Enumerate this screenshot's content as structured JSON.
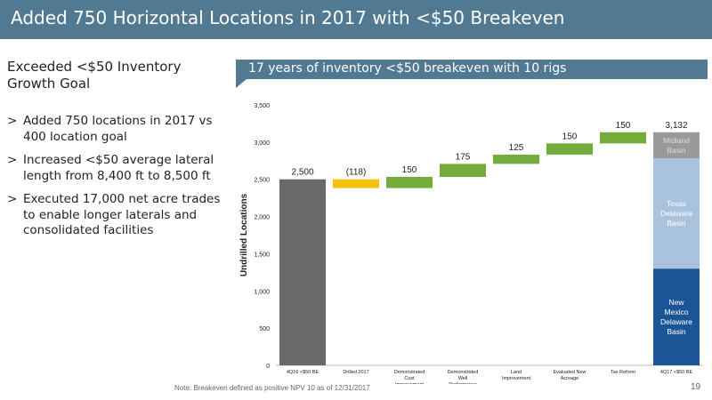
{
  "title": "Added 750 Horizontal Locations in 2017 with <$50 Breakeven",
  "left": {
    "heading": "Exceeded <$50 Inventory Growth Goal",
    "bullet_marker": ">",
    "bullets": [
      "Added 750 locations in 2017 vs 400 location goal",
      "Increased <$50 average lateral length from 8,400 ft to 8,500 ft",
      "Executed 17,000 net acre trades to enable longer laterals and consolidated facilities"
    ]
  },
  "callout": "17 years of inventory <$50 breakeven with 10 rigs",
  "chart_data": {
    "type": "waterfall",
    "ylabel": "Undrilled Locations",
    "ylim": [
      0,
      3500
    ],
    "yticks": [
      0,
      500,
      1000,
      1500,
      2000,
      2500,
      3000,
      3500
    ],
    "ytick_labels": [
      "0",
      "500",
      "1,000",
      "1,500",
      "2,000",
      "2,500",
      "3,000",
      "3,500"
    ],
    "categories": [
      "4Q16 <$50 BE",
      "Drilled 2017",
      "Demonstrated Cost Improvement",
      "Demonstrated Well Performance",
      "Land Improvement",
      "Evaluated New Acreage",
      "Tax Reform",
      "4Q17 <$50 BE"
    ],
    "steps": [
      {
        "category": "4Q16 <$50 BE",
        "kind": "total",
        "value": 2500,
        "label": "2,500",
        "color": "#696969"
      },
      {
        "category": "Drilled 2017",
        "kind": "delta",
        "value": -118,
        "label": "(118)",
        "color": "#f5c10f"
      },
      {
        "category": "Demonstrated Cost Improvement",
        "kind": "delta",
        "value": 150,
        "label": "150",
        "color": "#74ac3c"
      },
      {
        "category": "Demonstrated Well Performance",
        "kind": "delta",
        "value": 175,
        "label": "175",
        "color": "#74ac3c"
      },
      {
        "category": "Land Improvement",
        "kind": "delta",
        "value": 125,
        "label": "125",
        "color": "#74ac3c"
      },
      {
        "category": "Evaluated New Acreage",
        "kind": "delta",
        "value": 150,
        "label": "150",
        "color": "#74ac3c"
      },
      {
        "category": "Tax Reform",
        "kind": "delta",
        "value": 150,
        "label": "150",
        "color": "#74ac3c"
      }
    ],
    "final": {
      "category": "4Q17 <$50 BE",
      "label": "3,132",
      "total": 3132,
      "segments": [
        {
          "name": "New Mexico Delaware Basin",
          "value": 1300,
          "color": "#1c5596",
          "text_color": "#ffffff"
        },
        {
          "name": "Texas Delaware Basin",
          "value": 1480,
          "color": "#a9c2de",
          "text_color": "#ffffff"
        },
        {
          "name": "Midland Basin",
          "value": 352,
          "color": "#9a9a9a",
          "text_color": "#dddddd"
        }
      ]
    }
  },
  "footnote": "Note: Breakeven defined as positive NPV 10 as of 12/31/2017",
  "page_number": "19"
}
